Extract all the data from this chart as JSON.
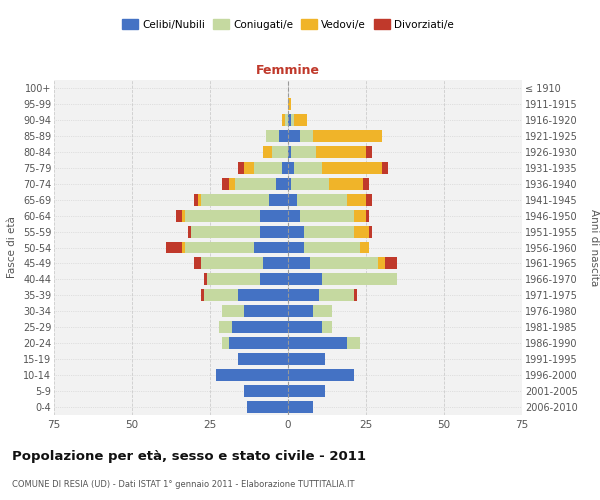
{
  "age_groups": [
    "0-4",
    "5-9",
    "10-14",
    "15-19",
    "20-24",
    "25-29",
    "30-34",
    "35-39",
    "40-44",
    "45-49",
    "50-54",
    "55-59",
    "60-64",
    "65-69",
    "70-74",
    "75-79",
    "80-84",
    "85-89",
    "90-94",
    "95-99",
    "100+"
  ],
  "birth_years": [
    "2006-2010",
    "2001-2005",
    "1996-2000",
    "1991-1995",
    "1986-1990",
    "1981-1985",
    "1976-1980",
    "1971-1975",
    "1966-1970",
    "1961-1965",
    "1956-1960",
    "1951-1955",
    "1946-1950",
    "1941-1945",
    "1936-1940",
    "1931-1935",
    "1926-1930",
    "1921-1925",
    "1916-1920",
    "1911-1915",
    "≤ 1910"
  ],
  "males": {
    "celibi": [
      13,
      14,
      23,
      16,
      19,
      18,
      14,
      16,
      9,
      8,
      11,
      9,
      9,
      6,
      4,
      2,
      0,
      3,
      0,
      0,
      0
    ],
    "coniugati": [
      0,
      0,
      0,
      0,
      2,
      4,
      7,
      11,
      17,
      20,
      22,
      22,
      24,
      22,
      13,
      9,
      5,
      4,
      1,
      0,
      0
    ],
    "vedovi": [
      0,
      0,
      0,
      0,
      0,
      0,
      0,
      0,
      0,
      0,
      1,
      0,
      1,
      1,
      2,
      3,
      3,
      0,
      1,
      0,
      0
    ],
    "divorziati": [
      0,
      0,
      0,
      0,
      0,
      0,
      0,
      1,
      1,
      2,
      5,
      1,
      2,
      1,
      2,
      2,
      0,
      0,
      0,
      0,
      0
    ]
  },
  "females": {
    "nubili": [
      8,
      12,
      21,
      12,
      19,
      11,
      8,
      10,
      11,
      7,
      5,
      5,
      4,
      3,
      1,
      2,
      1,
      4,
      1,
      0,
      0
    ],
    "coniugate": [
      0,
      0,
      0,
      0,
      4,
      3,
      6,
      11,
      24,
      22,
      18,
      16,
      17,
      16,
      12,
      9,
      8,
      4,
      1,
      0,
      0
    ],
    "vedove": [
      0,
      0,
      0,
      0,
      0,
      0,
      0,
      0,
      0,
      2,
      3,
      5,
      4,
      6,
      11,
      19,
      16,
      22,
      4,
      1,
      0
    ],
    "divorziate": [
      0,
      0,
      0,
      0,
      0,
      0,
      0,
      1,
      0,
      4,
      0,
      1,
      1,
      2,
      2,
      2,
      2,
      0,
      0,
      0,
      0
    ]
  },
  "colors": {
    "celibi": "#4472C4",
    "coniugati": "#c5d9a0",
    "vedovi": "#f0b429",
    "divorziati": "#c0392b"
  },
  "xlim": 75,
  "title": "Popolazione per età, sesso e stato civile - 2011",
  "subtitle": "COMUNE DI RESIA (UD) - Dati ISTAT 1° gennaio 2011 - Elaborazione TUTTITALIA.IT",
  "ylabel_left": "Fasce di età",
  "ylabel_right": "Anni di nascita",
  "xlabel_right": "Femmine",
  "bg_color": "#f2f2f2",
  "grid_color": "#cccccc"
}
